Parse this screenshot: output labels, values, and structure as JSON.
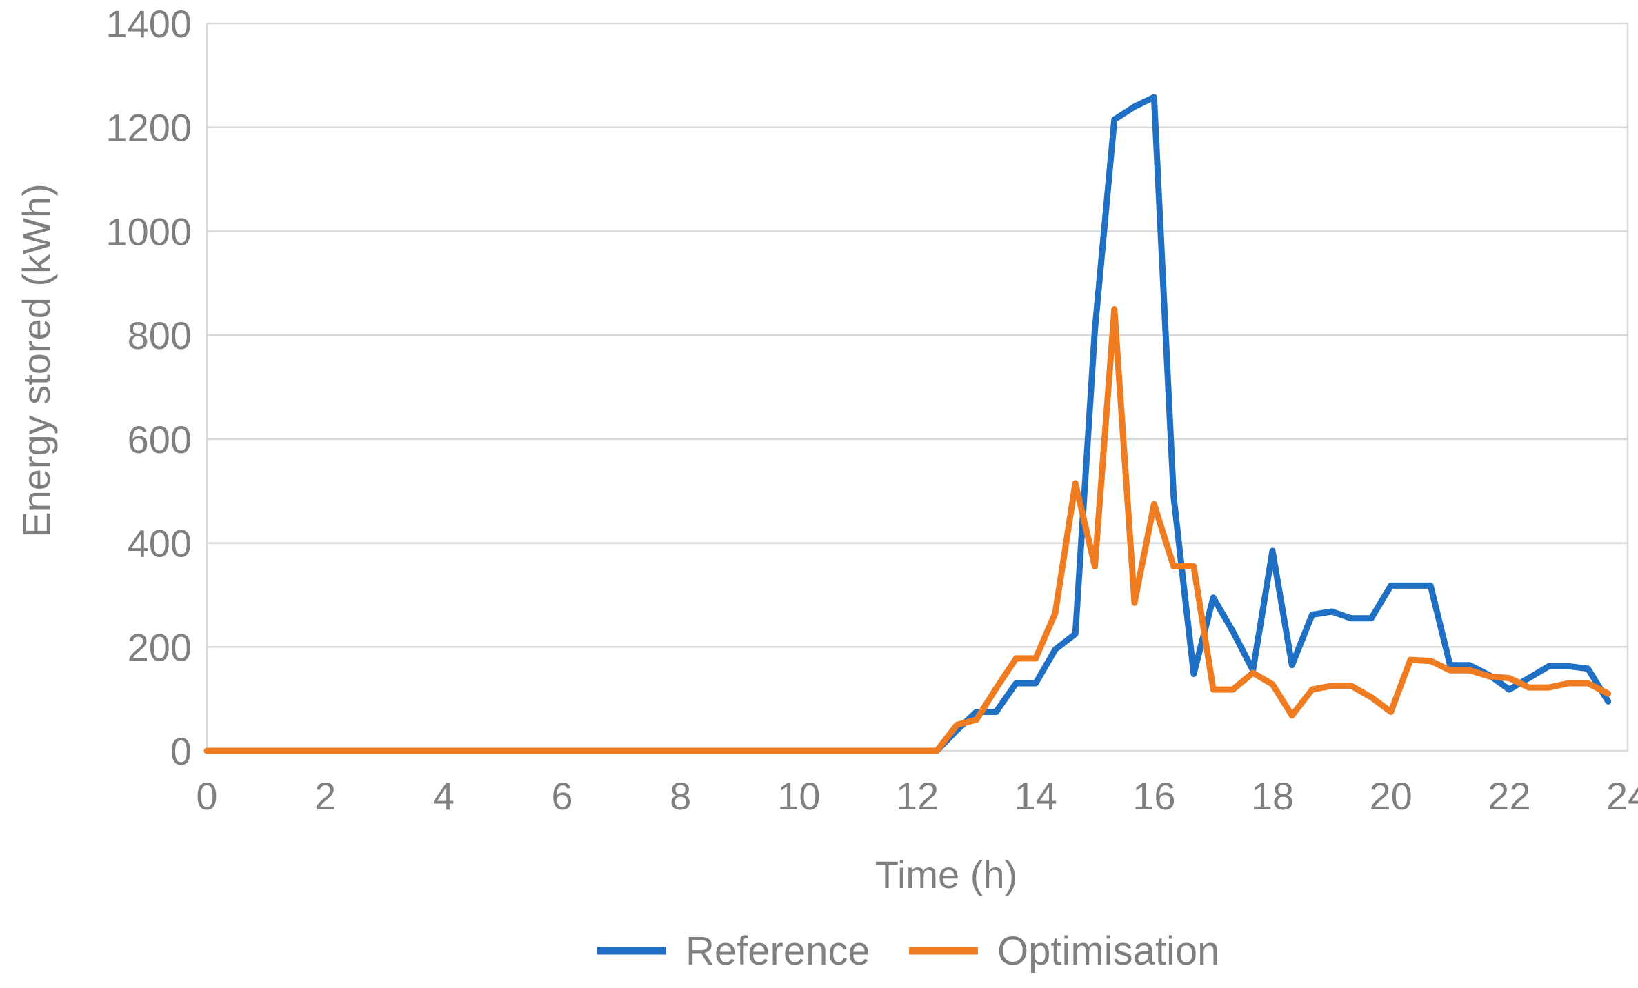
{
  "chart_data": {
    "type": "line",
    "title": "",
    "xlabel": "Time (h)",
    "ylabel": "Energy stored (kWh)",
    "xlim": [
      0,
      24
    ],
    "ylim": [
      0,
      1400
    ],
    "xticks": [
      0,
      2,
      4,
      6,
      8,
      10,
      12,
      14,
      16,
      18,
      20,
      22,
      24
    ],
    "yticks": [
      0,
      200,
      400,
      600,
      800,
      1000,
      1200,
      1400
    ],
    "grid": "horizontal",
    "legend": "bottom",
    "x": [
      0,
      0.33,
      0.67,
      1,
      1.33,
      1.67,
      2,
      2.33,
      2.67,
      3,
      3.33,
      3.67,
      4,
      4.33,
      4.67,
      5,
      5.33,
      5.67,
      6,
      6.33,
      6.67,
      7,
      7.33,
      7.67,
      8,
      8.33,
      8.67,
      9,
      9.33,
      9.67,
      10,
      10.33,
      10.67,
      11,
      11.33,
      11.67,
      12,
      12.33,
      12.67,
      13,
      13.33,
      13.67,
      14,
      14.33,
      14.67,
      15,
      15.33,
      15.67,
      16,
      16.33,
      16.67,
      17,
      17.33,
      17.67,
      18,
      18.33,
      18.67,
      19,
      19.33,
      19.67,
      20,
      20.33,
      20.67,
      21,
      21.33,
      21.67,
      22,
      22.33,
      22.67,
      23,
      23.33,
      23.67
    ],
    "series": [
      {
        "name": "Reference",
        "color": "#1f6fc5",
        "values": [
          0,
          0,
          0,
          0,
          0,
          0,
          0,
          0,
          0,
          0,
          0,
          0,
          0,
          0,
          0,
          0,
          0,
          0,
          0,
          0,
          0,
          0,
          0,
          0,
          0,
          0,
          0,
          0,
          0,
          0,
          0,
          0,
          0,
          0,
          0,
          0,
          0,
          0,
          40,
          75,
          75,
          130,
          130,
          195,
          225,
          810,
          1215,
          1240,
          1258,
          490,
          148,
          295,
          230,
          155,
          385,
          165,
          262,
          268,
          255,
          255,
          318,
          318,
          318,
          165,
          165,
          145,
          118,
          140,
          163,
          163,
          158,
          95
        ]
      },
      {
        "name": "Optimisation",
        "color": "#f07c22",
        "values": [
          0,
          0,
          0,
          0,
          0,
          0,
          0,
          0,
          0,
          0,
          0,
          0,
          0,
          0,
          0,
          0,
          0,
          0,
          0,
          0,
          0,
          0,
          0,
          0,
          0,
          0,
          0,
          0,
          0,
          0,
          0,
          0,
          0,
          0,
          0,
          0,
          0,
          0,
          50,
          60,
          120,
          178,
          178,
          265,
          515,
          355,
          850,
          285,
          475,
          355,
          355,
          118,
          118,
          150,
          128,
          68,
          118,
          125,
          125,
          103,
          75,
          175,
          173,
          155,
          155,
          143,
          140,
          122,
          122,
          130,
          130,
          110
        ]
      }
    ]
  }
}
